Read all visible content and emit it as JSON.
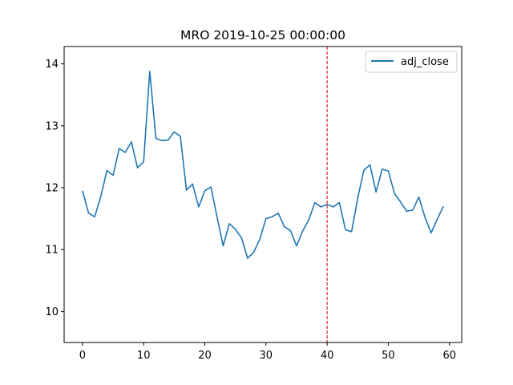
{
  "chart_data": {
    "type": "line",
    "title": "MRO 2019-10-25 00:00:00",
    "xlabel": "",
    "ylabel": "",
    "xlim": [
      -3,
      62
    ],
    "ylim": [
      9.5,
      14.28
    ],
    "x_ticks": [
      0,
      10,
      20,
      30,
      40,
      50,
      60
    ],
    "y_ticks": [
      10,
      11,
      12,
      13,
      14
    ],
    "grid": false,
    "legend": {
      "placement": "upper right",
      "entries": [
        "adj_close"
      ]
    },
    "vline": {
      "x": 40,
      "color": "#d62728",
      "style": "dashed"
    },
    "series": [
      {
        "name": "adj_close",
        "color": "#1f77b4",
        "x": [
          0,
          1,
          2,
          3,
          4,
          5,
          6,
          7,
          8,
          9,
          10,
          11,
          12,
          13,
          14,
          15,
          16,
          17,
          18,
          19,
          20,
          21,
          22,
          23,
          24,
          25,
          26,
          27,
          28,
          29,
          30,
          31,
          32,
          33,
          34,
          35,
          36,
          37,
          38,
          39,
          40,
          41,
          42,
          43,
          44,
          45,
          46,
          47,
          48,
          49,
          50,
          51,
          52,
          53,
          54,
          55,
          56,
          57,
          58,
          59
        ],
        "values": [
          11.95,
          11.59,
          11.53,
          11.86,
          12.28,
          12.2,
          12.63,
          12.57,
          12.74,
          12.32,
          12.42,
          13.88,
          12.8,
          12.76,
          12.77,
          12.9,
          12.83,
          11.96,
          12.06,
          11.69,
          11.95,
          12.01,
          11.53,
          11.06,
          11.42,
          11.33,
          11.19,
          10.86,
          10.96,
          11.17,
          11.5,
          11.53,
          11.59,
          11.37,
          11.31,
          11.06,
          11.3,
          11.48,
          11.76,
          11.69,
          11.73,
          11.69,
          11.76,
          11.32,
          11.29,
          11.83,
          12.28,
          12.37,
          11.93,
          12.3,
          12.27,
          11.91,
          11.77,
          11.62,
          11.64,
          11.85,
          11.52,
          11.27,
          11.49,
          11.7
        ]
      }
    ]
  }
}
